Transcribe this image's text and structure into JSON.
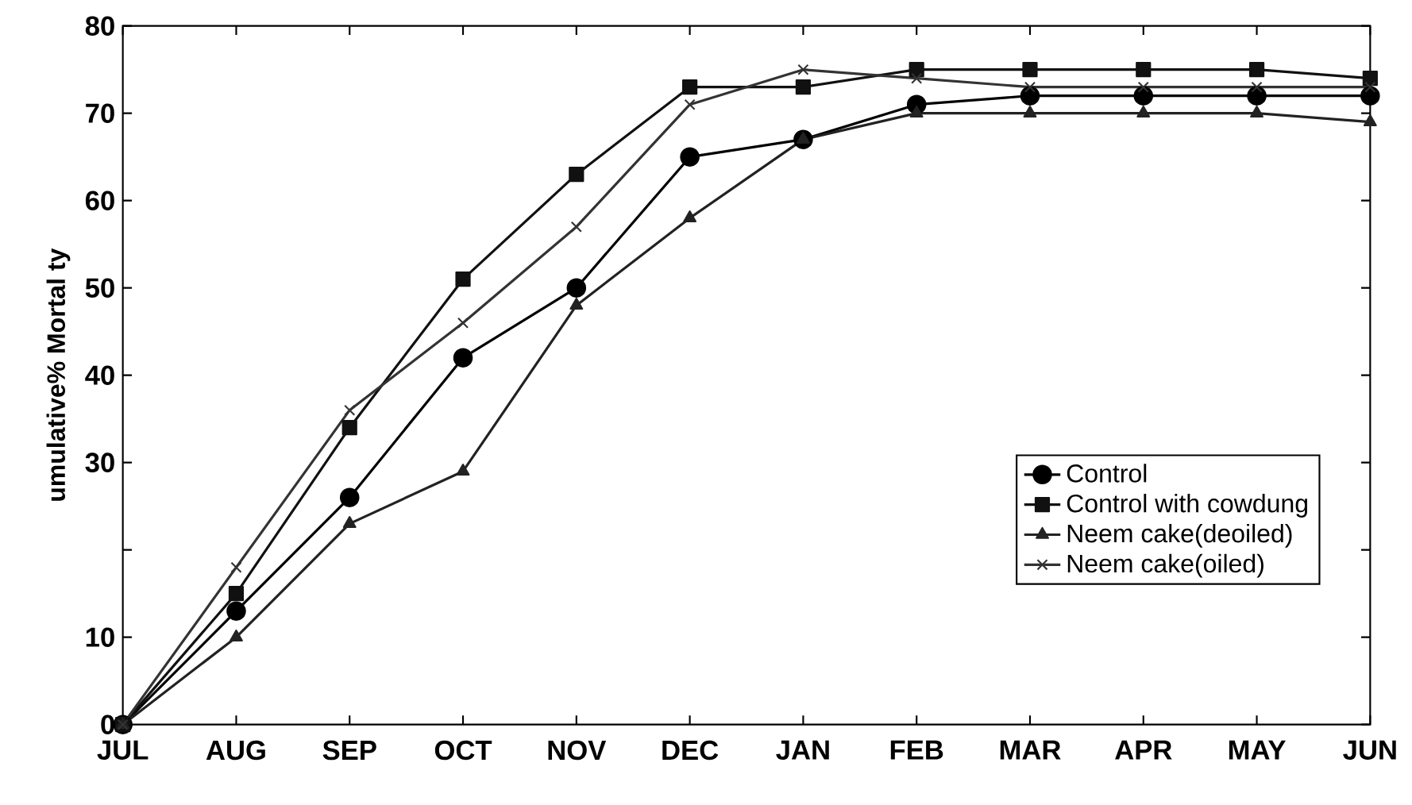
{
  "chart_data": {
    "type": "line",
    "ylabel": "umulative% Mortal ty",
    "categories": [
      "JUL",
      "AUG",
      "SEP",
      "OCT",
      "NOV",
      "DEC",
      "JAN",
      "FEB",
      "MAR",
      "APR",
      "MAY",
      "JUN"
    ],
    "series": [
      {
        "name": "Control",
        "color": "#000000",
        "marker": "circle",
        "values": [
          0,
          13,
          26,
          42,
          50,
          65,
          67,
          71,
          72,
          72,
          72,
          72
        ]
      },
      {
        "name": "Control with cowdung",
        "color": "#111111",
        "marker": "square",
        "values": [
          0,
          15,
          34,
          51,
          63,
          73,
          73,
          75,
          75,
          75,
          75,
          74
        ]
      },
      {
        "name": "Neem cake(deoiled)",
        "color": "#222222",
        "marker": "triangle",
        "values": [
          0,
          10,
          23,
          29,
          48,
          58,
          67,
          70,
          70,
          70,
          70,
          69
        ]
      },
      {
        "name": "Neem cake(oiled)",
        "color": "#333333",
        "marker": "cross",
        "values": [
          0,
          18,
          36,
          46,
          57,
          71,
          75,
          74,
          73,
          73,
          73,
          73
        ]
      }
    ],
    "ylim": [
      0,
      80
    ],
    "yticks": [
      0,
      10,
      {
        "value": 20,
        "label": null
      },
      30,
      40,
      50,
      60,
      70,
      80
    ],
    "grid": false,
    "legend": "bottom right",
    "line_style": "solid"
  }
}
